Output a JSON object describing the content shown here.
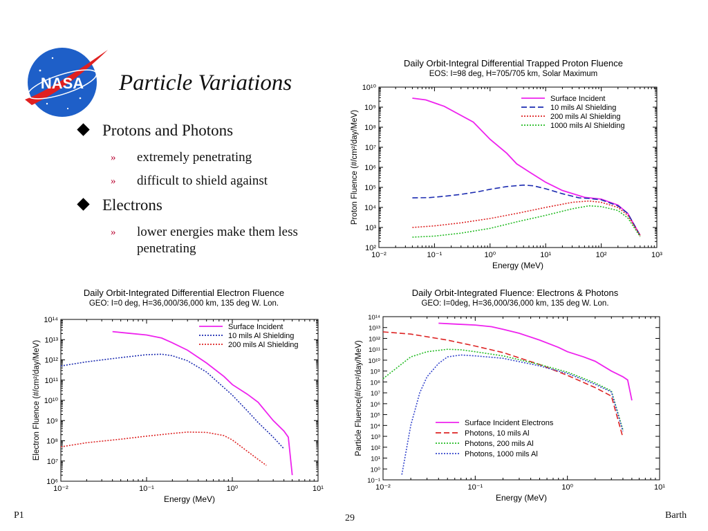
{
  "slide": {
    "title": "Particle Variations",
    "bullets": [
      {
        "text": "Protons and Photons",
        "sub": [
          "extremely penetrating",
          "difficult to shield against"
        ]
      },
      {
        "text": "Electrons",
        "sub": [
          "lower energies make them less penetrating"
        ]
      }
    ],
    "footer_left": "P1",
    "footer_center": "29",
    "footer_right": "Barth",
    "logo_text": "NASA"
  },
  "colors": {
    "magenta": "#ee22ee",
    "blue": "#1a2ab0",
    "red": "#dd2222",
    "green": "#22bb22",
    "bluedot": "#3344cc"
  },
  "chart_data": [
    {
      "type": "line",
      "title": "Daily Orbit-Integral Differential Trapped Proton Fluence",
      "subtitle": "EOS: I=98 deg, H=705/705 km, Solar Maximum",
      "xlabel": "Energy (MeV)",
      "ylabel": "Proton Fluence (#/cm²/day/MeV)",
      "xscale": "log",
      "yscale": "log",
      "xlim": [
        0.01,
        1000
      ],
      "ylim": [
        100,
        10000000000
      ],
      "xticks": [
        "10⁻²",
        "10⁻¹",
        "10⁰",
        "10¹",
        "10²",
        "10³"
      ],
      "yticks": [
        "10²",
        "10³",
        "10⁴",
        "10⁵",
        "10⁶",
        "10⁷",
        "10⁸",
        "10⁹",
        "10¹⁰"
      ],
      "legend_position": "top-right",
      "series": [
        {
          "name": "Surface Incident",
          "style": "solid",
          "color": "#ee22ee",
          "x": [
            0.04,
            0.07,
            0.15,
            0.5,
            1.0,
            2.0,
            3.0,
            5.0,
            10,
            20,
            50,
            100,
            200,
            300,
            500
          ],
          "y": [
            2800000000.0,
            2300000000.0,
            1100000000.0,
            180000000.0,
            25000000.0,
            5000000.0,
            1500000.0,
            600000.0,
            180000.0,
            70000.0,
            32000.0,
            26000.0,
            13000.0,
            5000,
            400
          ]
        },
        {
          "name": "10 mils Al Shielding",
          "style": "dash",
          "color": "#1a2ab0",
          "x": [
            0.04,
            0.08,
            0.15,
            0.3,
            0.6,
            1.0,
            2.0,
            4.0,
            6.0,
            10,
            20,
            40,
            60,
            100,
            200,
            300,
            500
          ],
          "y": [
            30000.0,
            31000.0,
            36000.0,
            45000.0,
            60000.0,
            80000.0,
            110000.0,
            130000.0,
            120000.0,
            85000.0,
            48000.0,
            30000.0,
            28000.0,
            24000.0,
            12000.0,
            5000,
            400
          ]
        },
        {
          "name": "200 mils Al Shielding",
          "style": "dot",
          "color": "#dd2222",
          "x": [
            0.04,
            0.1,
            0.3,
            1.0,
            3.0,
            10,
            30,
            60,
            100,
            200,
            300,
            500
          ],
          "y": [
            1000,
            1200,
            1700,
            2800,
            5000,
            10000.0,
            18000.0,
            21000.0,
            18000.0,
            10000.0,
            4000,
            400
          ]
        },
        {
          "name": "1000 mils Al Shielding",
          "style": "dot",
          "color": "#22bb22",
          "x": [
            0.04,
            0.1,
            0.3,
            1.0,
            3.0,
            10,
            30,
            60,
            100,
            200,
            300,
            500
          ],
          "y": [
            330,
            370,
            520,
            900,
            1900,
            4000,
            8500,
            12000.0,
            11000.0,
            7000,
            3000,
            350
          ]
        }
      ]
    },
    {
      "type": "line",
      "title": "Daily Orbit-Integrated Differential Electron Fluence",
      "subtitle": "GEO: I=0 deg, H=36,000/36,000 km, 135 deg W. Lon.",
      "xlabel": "Energy (MeV)",
      "ylabel": "Electron Fluence (#/cm²/day/MeV)",
      "xscale": "log",
      "yscale": "log",
      "xlim": [
        0.01,
        10
      ],
      "ylim": [
        1000000,
        100000000000000
      ],
      "xticks": [
        "10⁻²",
        "10⁻¹",
        "10⁰",
        "10¹"
      ],
      "yticks": [
        "10⁶",
        "10⁷",
        "10⁸",
        "10⁹",
        "10¹⁰",
        "10¹¹",
        "10¹²",
        "10¹³",
        "10¹⁴"
      ],
      "legend_position": "top-right",
      "series": [
        {
          "name": "Surface Incident",
          "style": "solid",
          "color": "#ee22ee",
          "x": [
            0.04,
            0.06,
            0.1,
            0.15,
            0.2,
            0.3,
            0.5,
            0.8,
            1.0,
            1.5,
            2.0,
            3.0,
            4.0,
            4.5,
            5.0
          ],
          "y": [
            25000000000000.0,
            21000000000000.0,
            17000000000000.0,
            12000000000000.0,
            7000000000000.0,
            3000000000000.0,
            700000000000.0,
            150000000000.0,
            60000000000.0,
            20000000000.0,
            8000000000.0,
            1000000000.0,
            300000000.0,
            150000000.0,
            2000000.0
          ]
        },
        {
          "name": "10 mils Al Shielding",
          "style": "dot",
          "color": "#1a2ab0",
          "x": [
            0.01,
            0.02,
            0.05,
            0.1,
            0.15,
            0.2,
            0.3,
            0.5,
            1.0,
            1.5,
            2.0,
            3.0,
            4.0
          ],
          "y": [
            500000000000.0,
            800000000000.0,
            1300000000000.0,
            1800000000000.0,
            1900000000000.0,
            1600000000000.0,
            900000000000.0,
            250000000000.0,
            18000000000.0,
            3000000000.0,
            800000000.0,
            150000000.0,
            40000000.0
          ]
        },
        {
          "name": "200 mils Al Shielding",
          "style": "dot",
          "color": "#dd2222",
          "x": [
            0.01,
            0.02,
            0.05,
            0.1,
            0.2,
            0.3,
            0.5,
            0.8,
            1.0,
            1.5,
            2.0,
            2.5
          ],
          "y": [
            50000000.0,
            80000000.0,
            120000000.0,
            170000000.0,
            230000000.0,
            270000000.0,
            260000000.0,
            180000000.0,
            110000000.0,
            30000000.0,
            12000000.0,
            6000000.0
          ]
        }
      ]
    },
    {
      "type": "line",
      "title": "Daily Orbit-Integrated Fluence: Electrons & Photons",
      "subtitle": "GEO: I=0deg, H=36,000/36,000 km, 135 deg W. Lon.",
      "xlabel": "Energy (MeV)",
      "ylabel": "Particle Fluence(#/cm²/day/MeV)",
      "xscale": "log",
      "yscale": "log",
      "xlim": [
        0.01,
        10
      ],
      "ylim": [
        0.1,
        100000000000000
      ],
      "xticks": [
        "10⁻²",
        "10⁻¹",
        "10⁰",
        "10¹"
      ],
      "yticks": [
        "10⁻¹",
        "10⁰",
        "10¹",
        "10²",
        "10³",
        "10⁴",
        "10⁵",
        "10⁶",
        "10⁷",
        "10⁸",
        "10⁹",
        "10¹⁰",
        "10¹¹",
        "10¹²",
        "10¹³",
        "10¹⁴"
      ],
      "legend_position": "bottom-center",
      "series": [
        {
          "name": "Surface Incident Electrons",
          "style": "solid",
          "color": "#ee22ee",
          "x": [
            0.04,
            0.06,
            0.1,
            0.15,
            0.2,
            0.3,
            0.5,
            0.8,
            1.0,
            1.5,
            2.0,
            3.0,
            4.0,
            4.5,
            5.0
          ],
          "y": [
            25000000000000.0,
            21000000000000.0,
            17000000000000.0,
            12000000000000.0,
            7000000000000.0,
            3000000000000.0,
            700000000000.0,
            150000000000.0,
            60000000000.0,
            20000000000.0,
            8000000000.0,
            1000000000.0,
            300000000.0,
            150000000.0,
            2000000.0
          ]
        },
        {
          "name": "Photons, 10 mils Al",
          "style": "dash",
          "color": "#dd2222",
          "x": [
            0.01,
            0.02,
            0.05,
            0.1,
            0.2,
            0.5,
            1.0,
            2.0,
            3.0,
            4.0
          ],
          "y": [
            4000000000000.0,
            2500000000000.0,
            700000000000.0,
            200000000000.0,
            50000000000.0,
            4000000000.0,
            400000000.0,
            30000000.0,
            5000000.0,
            800.0
          ]
        },
        {
          "name": "Photons, 200 mils Al",
          "style": "dot",
          "color": "#22bb22",
          "x": [
            0.01,
            0.015,
            0.02,
            0.03,
            0.05,
            0.07,
            0.1,
            0.2,
            0.5,
            1.0,
            2.0,
            3.0,
            4.0
          ],
          "y": [
            200000000.0,
            3000000000.0,
            20000000000.0,
            60000000000.0,
            100000000000.0,
            90000000000.0,
            60000000000.0,
            25000000000.0,
            4000000000.0,
            800000000.0,
            80000000.0,
            15000000.0,
            4000.0
          ]
        },
        {
          "name": "Photons, 1000 mils Al",
          "style": "dot",
          "color": "#3344cc",
          "x": [
            0.016,
            0.02,
            0.025,
            0.03,
            0.04,
            0.05,
            0.07,
            0.1,
            0.2,
            0.5,
            1.0,
            2.0,
            3.0,
            4.0
          ],
          "y": [
            0.3,
            10000.0,
            10000000.0,
            300000000.0,
            5000000000.0,
            20000000000.0,
            30000000000.0,
            25000000000.0,
            15000000000.0,
            3000000000.0,
            600000000.0,
            60000000.0,
            12000000.0,
            3000.0
          ]
        }
      ]
    }
  ]
}
